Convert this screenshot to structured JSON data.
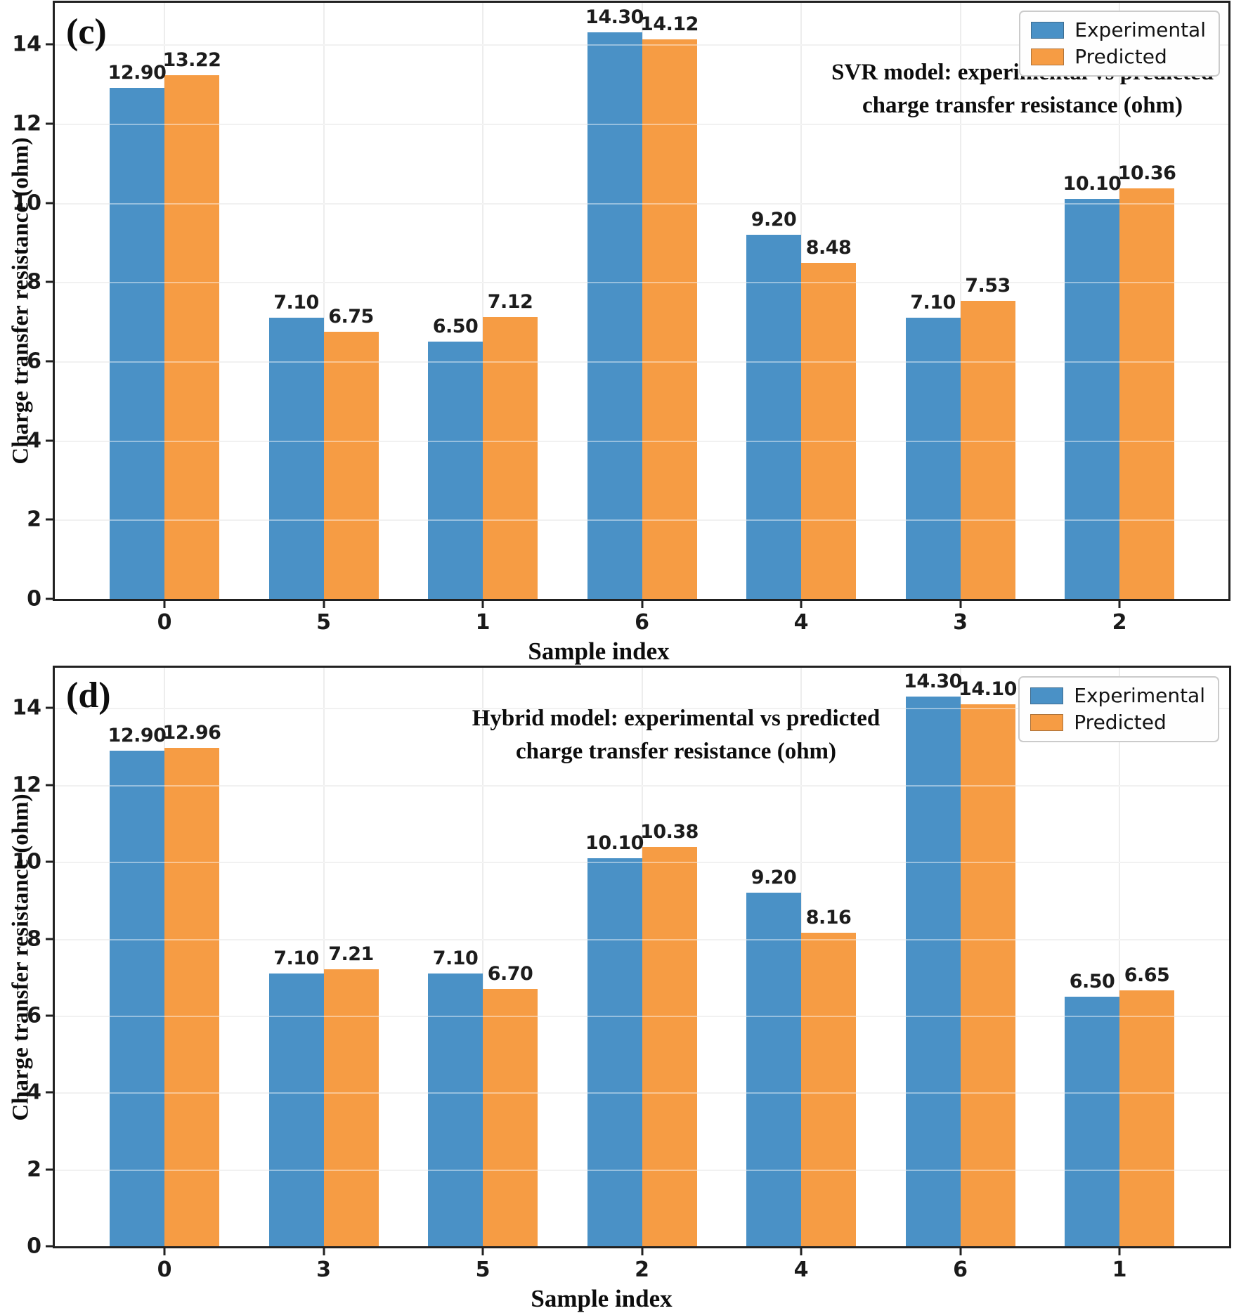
{
  "figure": {
    "background": "#ffffff"
  },
  "colors": {
    "experimental": "#4A91C6",
    "predicted": "#F69C44",
    "grid": "#e7e7e7",
    "spine": "#212121"
  },
  "chart_data": [
    {
      "type": "bar",
      "panel_label": "(c)",
      "title": "SVR model: experimental vs predicted charge transfer resistance (ohm)",
      "title_lines": [
        "SVR model: experimental vs predicted",
        "charge transfer resistance (ohm)"
      ],
      "categories": [
        "0",
        "5",
        "1",
        "6",
        "4",
        "3",
        "2"
      ],
      "series": [
        {
          "name": "Experimental",
          "color": "#4A91C6",
          "values": [
            12.9,
            7.1,
            6.5,
            14.3,
            9.2,
            7.1,
            10.1
          ]
        },
        {
          "name": "Predicted",
          "color": "#F69C44",
          "values": [
            13.22,
            6.75,
            7.12,
            14.12,
            8.48,
            7.53,
            10.36
          ]
        }
      ],
      "xlabel": "Sample index",
      "ylabel": "Charge transfer resistance (ohm)",
      "ylim": [
        0,
        15.05
      ],
      "yticks": [
        0,
        2,
        4,
        6,
        8,
        10,
        12,
        14
      ],
      "grid": true,
      "legend_position": "top-right",
      "value_labels": "2 decimal places above each bar"
    },
    {
      "type": "bar",
      "panel_label": "(d)",
      "title": "Hybrid model: experimental vs predicted charge transfer resistance (ohm)",
      "title_lines": [
        "Hybrid model: experimental vs predicted",
        "charge transfer resistance (ohm)"
      ],
      "categories": [
        "0",
        "3",
        "5",
        "2",
        "4",
        "6",
        "1"
      ],
      "series": [
        {
          "name": "Experimental",
          "color": "#4A91C6",
          "values": [
            12.9,
            7.1,
            7.1,
            10.1,
            9.2,
            14.3,
            6.5
          ]
        },
        {
          "name": "Predicted",
          "color": "#F69C44",
          "values": [
            12.96,
            7.21,
            6.7,
            10.38,
            8.16,
            14.1,
            6.65
          ]
        }
      ],
      "xlabel": "Sample index",
      "ylabel": "Charge transfer resistance (ohm)",
      "ylim": [
        0,
        15.05
      ],
      "yticks": [
        0,
        2,
        4,
        6,
        8,
        10,
        12,
        14
      ],
      "grid": true,
      "legend_position": "top-right",
      "value_labels": "2 decimal places above each bar"
    }
  ]
}
